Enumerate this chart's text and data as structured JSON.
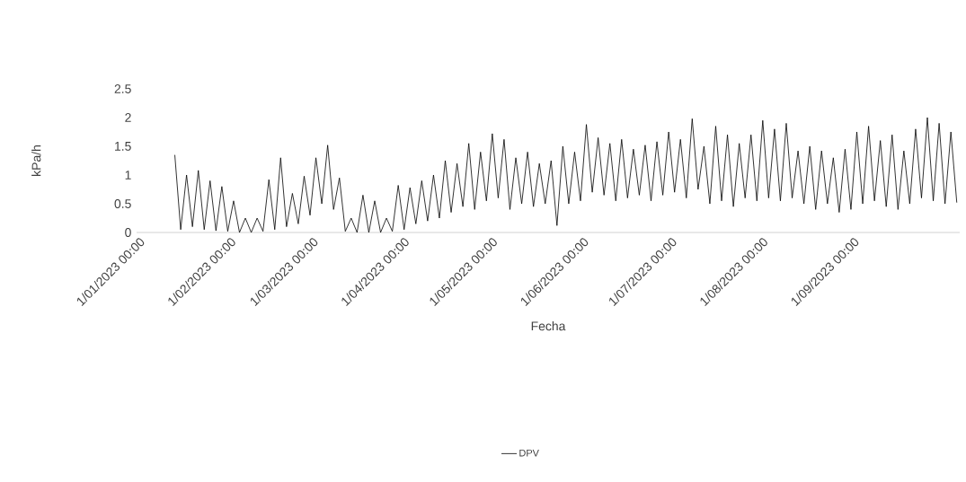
{
  "chart_data": {
    "type": "line",
    "xlabel": "Fecha",
    "ylabel": "kPa/h",
    "x": [
      "2023-01-14",
      "2023-01-16",
      "2023-01-18",
      "2023-01-20",
      "2023-01-22",
      "2023-01-24",
      "2023-01-26",
      "2023-01-28",
      "2023-01-30",
      "2023-02-01",
      "2023-02-03",
      "2023-02-05",
      "2023-02-07",
      "2023-02-09",
      "2023-02-11",
      "2023-02-13",
      "2023-02-15",
      "2023-02-17",
      "2023-02-19",
      "2023-02-21",
      "2023-02-23",
      "2023-02-25",
      "2023-02-27",
      "2023-03-01",
      "2023-03-03",
      "2023-03-05",
      "2023-03-07",
      "2023-03-09",
      "2023-03-11",
      "2023-03-13",
      "2023-03-15",
      "2023-03-17",
      "2023-03-19",
      "2023-03-21",
      "2023-03-23",
      "2023-03-25",
      "2023-03-27",
      "2023-03-29",
      "2023-03-31",
      "2023-04-02",
      "2023-04-04",
      "2023-04-06",
      "2023-04-08",
      "2023-04-10",
      "2023-04-12",
      "2023-04-14",
      "2023-04-16",
      "2023-04-18",
      "2023-04-20",
      "2023-04-22",
      "2023-04-24",
      "2023-04-26",
      "2023-04-28",
      "2023-04-30",
      "2023-05-02",
      "2023-05-04",
      "2023-05-06",
      "2023-05-08",
      "2023-05-10",
      "2023-05-12",
      "2023-05-14",
      "2023-05-16",
      "2023-05-18",
      "2023-05-20",
      "2023-05-22",
      "2023-05-24",
      "2023-05-26",
      "2023-05-28",
      "2023-05-30",
      "2023-06-01",
      "2023-06-03",
      "2023-06-05",
      "2023-06-07",
      "2023-06-09",
      "2023-06-11",
      "2023-06-13",
      "2023-06-15",
      "2023-06-17",
      "2023-06-19",
      "2023-06-21",
      "2023-06-23",
      "2023-06-25",
      "2023-06-27",
      "2023-06-29",
      "2023-07-01",
      "2023-07-03",
      "2023-07-05",
      "2023-07-07",
      "2023-07-09",
      "2023-07-11",
      "2023-07-13",
      "2023-07-15",
      "2023-07-17",
      "2023-07-19",
      "2023-07-21",
      "2023-07-23",
      "2023-07-25",
      "2023-07-27",
      "2023-07-29",
      "2023-07-31",
      "2023-08-02",
      "2023-08-04",
      "2023-08-06",
      "2023-08-08",
      "2023-08-10",
      "2023-08-12",
      "2023-08-14",
      "2023-08-16",
      "2023-08-18",
      "2023-08-20",
      "2023-08-22",
      "2023-08-24",
      "2023-08-26",
      "2023-08-28",
      "2023-08-30",
      "2023-09-01",
      "2023-09-03",
      "2023-09-05",
      "2023-09-07",
      "2023-09-09",
      "2023-09-11",
      "2023-09-13",
      "2023-09-15",
      "2023-09-17",
      "2023-09-19",
      "2023-09-21",
      "2023-09-23",
      "2023-09-25",
      "2023-09-27",
      "2023-09-29",
      "2023-10-01",
      "2023-10-03",
      "2023-10-05",
      "2023-10-07"
    ],
    "series": [
      {
        "name": "DPV",
        "color": "#000000",
        "values": [
          1.35,
          0.05,
          1.0,
          0.1,
          1.08,
          0.05,
          0.9,
          0.03,
          0.8,
          0.02,
          0.55,
          0.0,
          0.25,
          0.0,
          0.25,
          0.02,
          0.92,
          0.05,
          1.3,
          0.1,
          0.68,
          0.15,
          0.98,
          0.3,
          1.3,
          0.5,
          1.52,
          0.4,
          0.95,
          0.02,
          0.25,
          0.0,
          0.65,
          0.0,
          0.55,
          0.0,
          0.25,
          0.02,
          0.82,
          0.05,
          0.78,
          0.15,
          0.9,
          0.2,
          1.0,
          0.25,
          1.25,
          0.35,
          1.2,
          0.45,
          1.55,
          0.4,
          1.4,
          0.55,
          1.72,
          0.6,
          1.62,
          0.4,
          1.3,
          0.5,
          1.4,
          0.45,
          1.2,
          0.5,
          1.25,
          0.12,
          1.5,
          0.5,
          1.4,
          0.55,
          1.88,
          0.7,
          1.65,
          0.65,
          1.55,
          0.55,
          1.62,
          0.6,
          1.45,
          0.65,
          1.52,
          0.55,
          1.58,
          0.65,
          1.75,
          0.7,
          1.62,
          0.6,
          1.98,
          0.75,
          1.5,
          0.5,
          1.85,
          0.55,
          1.7,
          0.45,
          1.55,
          0.6,
          1.7,
          0.55,
          1.95,
          0.6,
          1.8,
          0.55,
          1.9,
          0.6,
          1.42,
          0.5,
          1.5,
          0.4,
          1.42,
          0.5,
          1.3,
          0.35,
          1.45,
          0.4,
          1.75,
          0.5,
          1.85,
          0.55,
          1.6,
          0.45,
          1.7,
          0.4,
          1.42,
          0.5,
          1.8,
          0.6,
          2.0,
          0.55,
          1.9,
          0.5,
          1.75,
          0.52
        ]
      }
    ],
    "xlim": [
      "2023-01-01",
      "2023-10-08"
    ],
    "xticks": [
      {
        "value": "2023-01-01",
        "label": "1/01/2023 00:00"
      },
      {
        "value": "2023-02-01",
        "label": "1/02/2023 00:00"
      },
      {
        "value": "2023-03-01",
        "label": "1/03/2023 00:00"
      },
      {
        "value": "2023-04-01",
        "label": "1/04/2023 00:00"
      },
      {
        "value": "2023-05-01",
        "label": "1/05/2023 00:00"
      },
      {
        "value": "2023-06-01",
        "label": "1/06/2023 00:00"
      },
      {
        "value": "2023-07-01",
        "label": "1/07/2023 00:00"
      },
      {
        "value": "2023-08-01",
        "label": "1/08/2023 00:00"
      },
      {
        "value": "2023-09-01",
        "label": "1/09/2023 00:00"
      }
    ],
    "ylim": [
      0,
      2.5
    ],
    "yticks": [
      {
        "value": 0,
        "label": "0"
      },
      {
        "value": 0.5,
        "label": "0.5"
      },
      {
        "value": 1,
        "label": "1"
      },
      {
        "value": 1.5,
        "label": "1.5"
      },
      {
        "value": 2,
        "label": "2"
      },
      {
        "value": 2.5,
        "label": "2.5"
      }
    ],
    "legend": "bottom"
  }
}
